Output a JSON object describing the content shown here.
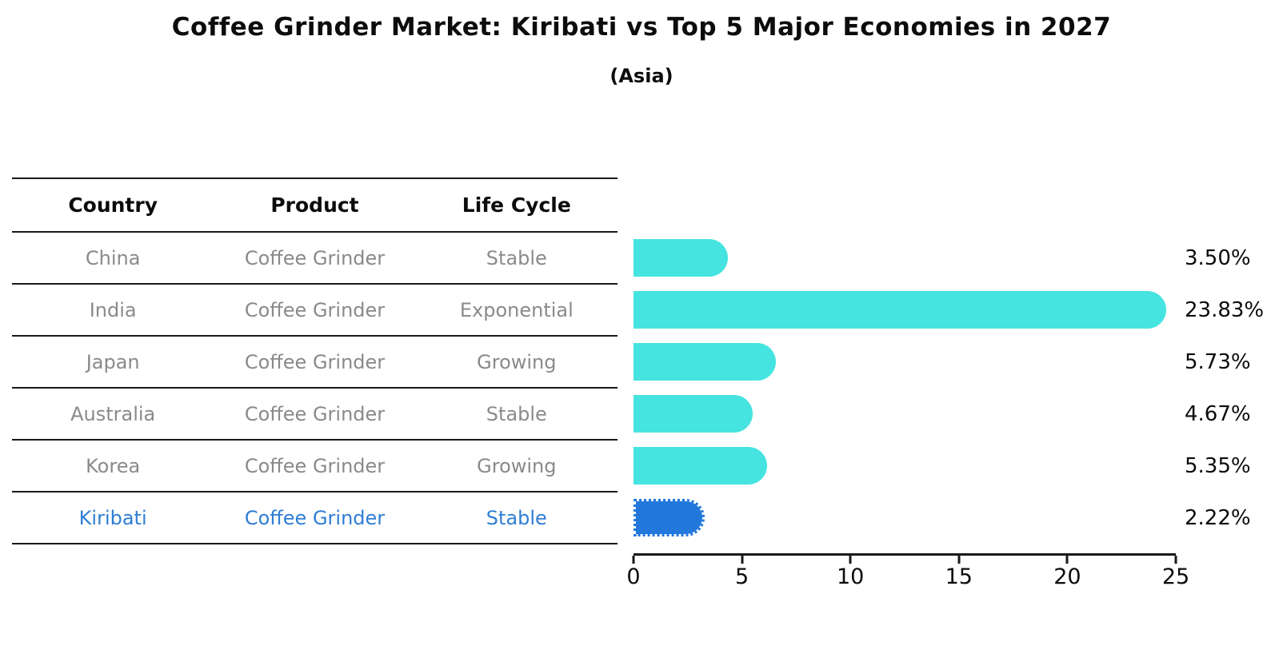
{
  "title": "Coffee Grinder Market: Kiribati vs Top 5 Major Economies in 2027",
  "subtitle": "(Asia)",
  "table": {
    "headers": [
      "Country",
      "Product",
      "Life Cycle"
    ],
    "rows": [
      {
        "country": "China",
        "product": "Coffee Grinder",
        "life_cycle": "Stable"
      },
      {
        "country": "India",
        "product": "Coffee Grinder",
        "life_cycle": "Exponential"
      },
      {
        "country": "Japan",
        "product": "Coffee Grinder",
        "life_cycle": "Growing"
      },
      {
        "country": "Australia",
        "product": "Coffee Grinder",
        "life_cycle": "Stable"
      },
      {
        "country": "Korea",
        "product": "Coffee Grinder",
        "life_cycle": "Growing"
      },
      {
        "country": "Kiribati",
        "product": "Coffee Grinder",
        "life_cycle": "Stable"
      }
    ],
    "highlight_row": "Kiribati"
  },
  "chart_data": {
    "type": "bar",
    "orientation": "horizontal",
    "categories": [
      "China",
      "India",
      "Japan",
      "Australia",
      "Korea",
      "Kiribati"
    ],
    "values": [
      3.5,
      23.83,
      5.73,
      4.67,
      5.35,
      2.22
    ],
    "value_labels": [
      "3.50%",
      "23.83%",
      "5.73%",
      "4.67%",
      "5.35%",
      "2.22%"
    ],
    "xlim": [
      0,
      25
    ],
    "x_ticks": [
      0,
      5,
      10,
      15,
      20,
      25
    ],
    "x_tick_labels": [
      "0",
      "5",
      "10",
      "15",
      "20",
      "25"
    ],
    "highlight_index": 5,
    "bar_color": "#45E4E0",
    "highlight_bar_color": "#2277DB",
    "highlight_text_color": "#2e7ed3",
    "grid": "off",
    "legend": "none"
  }
}
